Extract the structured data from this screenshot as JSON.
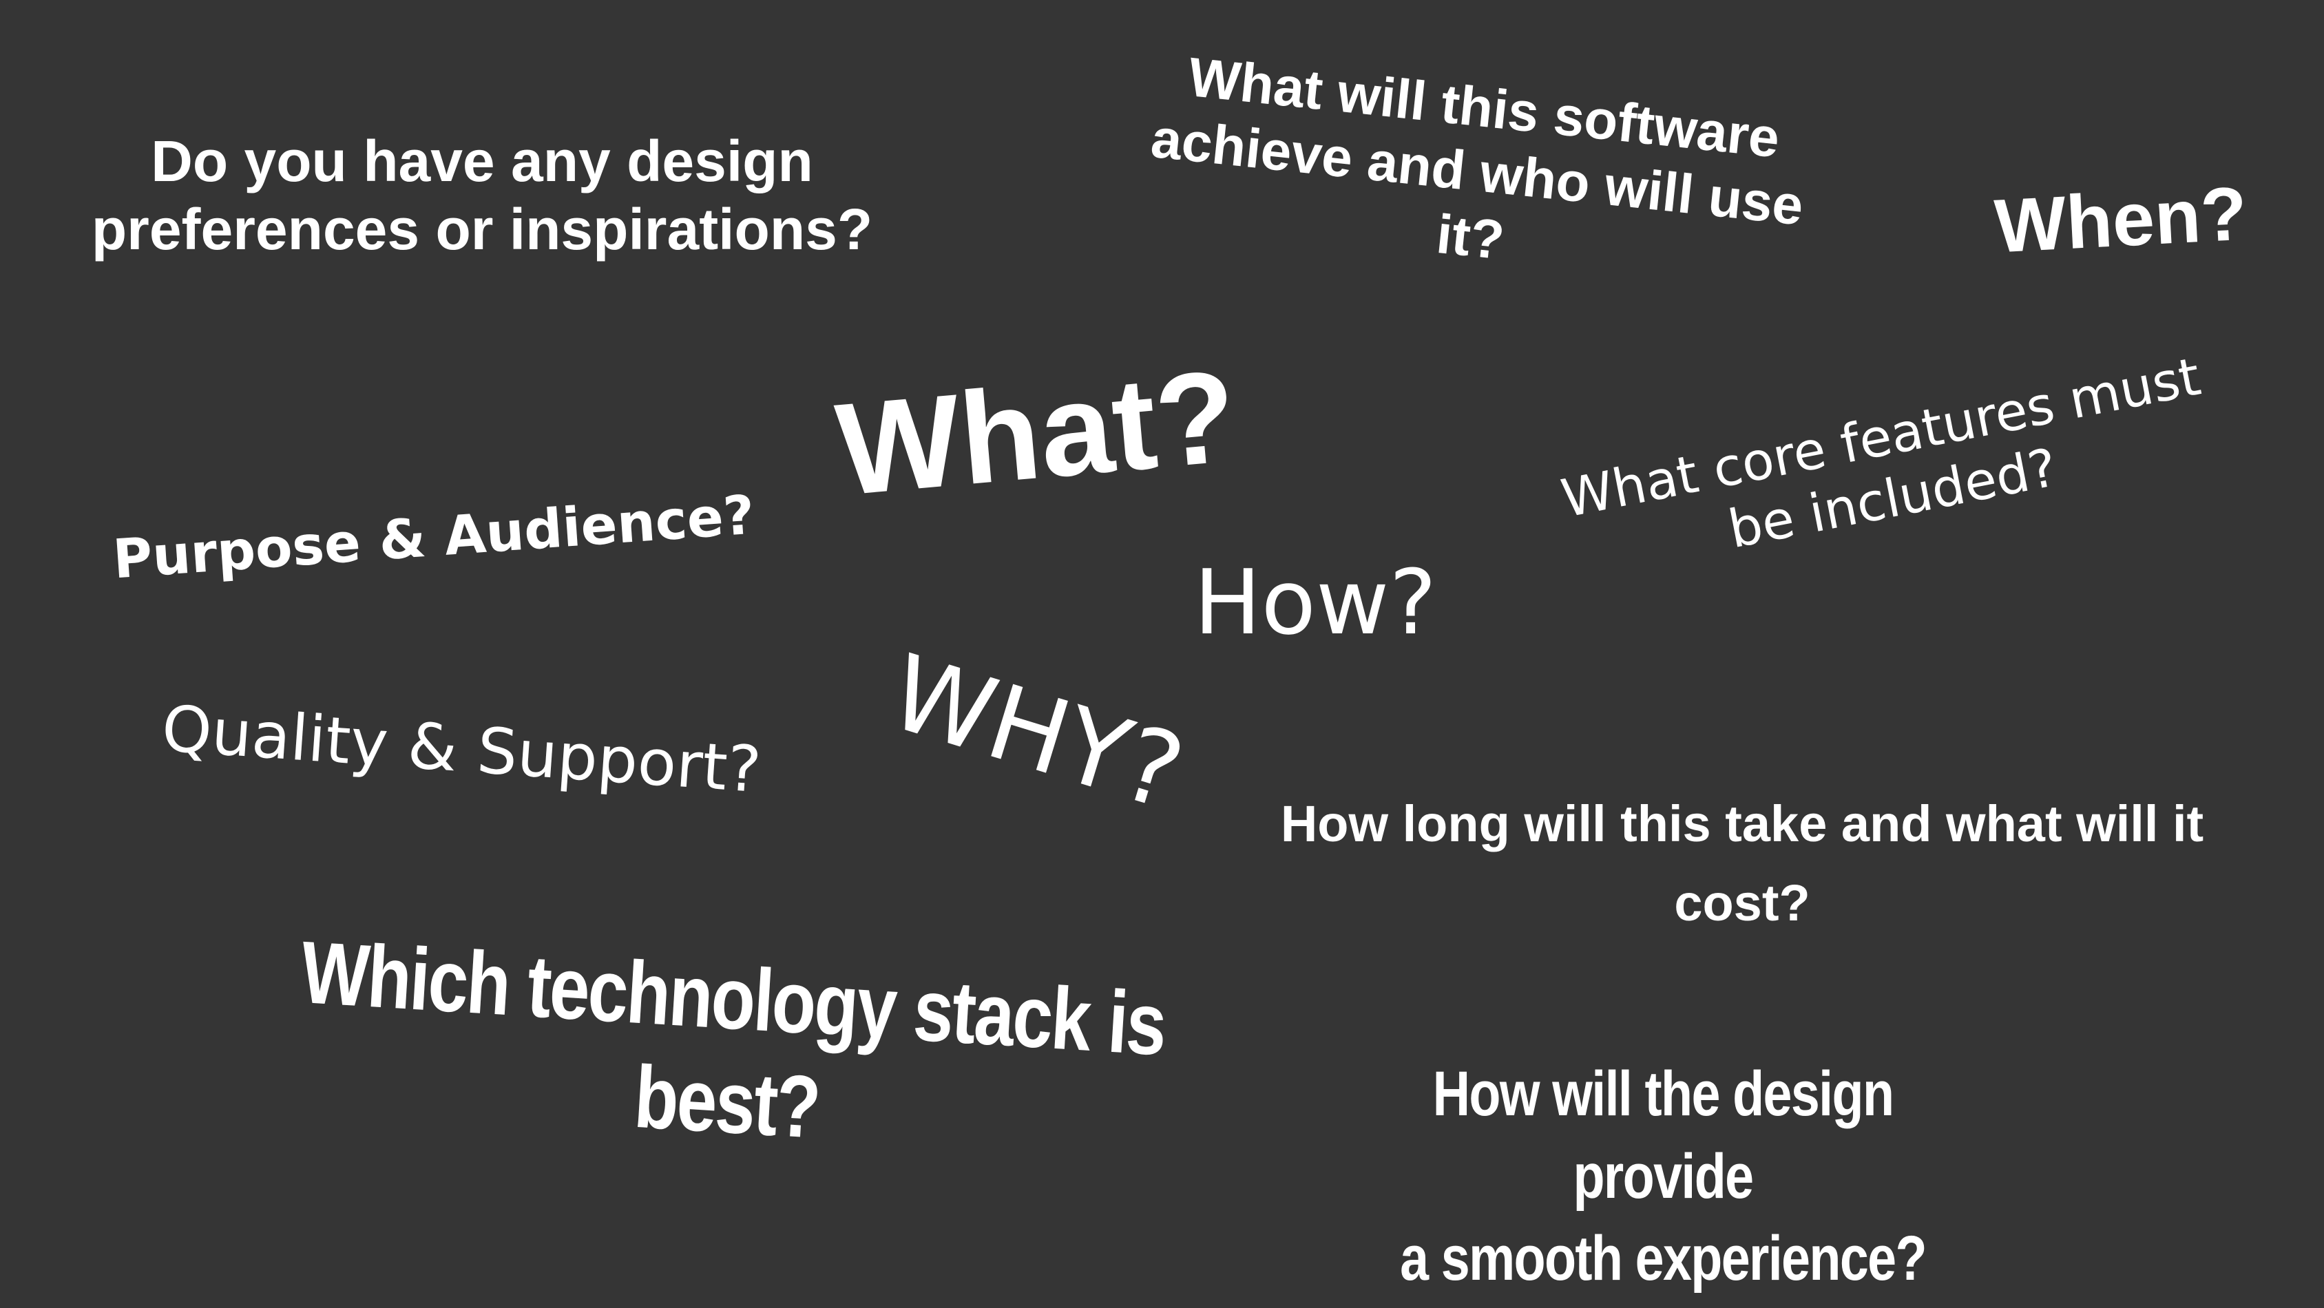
{
  "background_color": "#353535",
  "text_color": "#ffffff",
  "questions": {
    "design_prefs": "Do you have any design\npreferences or inspirations?",
    "software": "What will this software\nachieve and who will use\nit?",
    "when": "When?",
    "what": "What?",
    "core_features": "What core features must\nbe included?",
    "purpose": "Purpose & Audience?",
    "how": "How?",
    "quality": "Quality & Support?",
    "why": "WHY?",
    "how_long": "How long will this take and what will it\ncost?",
    "tech_stack": "Which technology stack is best?",
    "smooth": "How will the design provide\na smooth experience?"
  }
}
